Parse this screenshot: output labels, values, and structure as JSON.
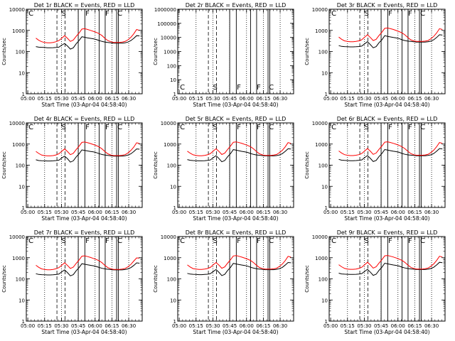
{
  "chart_data": [
    {
      "type": "line",
      "title": "Det 1r BLACK = Events, RED = LLD",
      "xlabel": "Start Time (03-Apr-04 04:58:40)",
      "ylabel": "Counts/sec",
      "xticks": [
        "05:00",
        "05:15",
        "05:30",
        "05:45",
        "06:00",
        "06:15",
        "06:30"
      ],
      "ylim": [
        1,
        10000
      ],
      "yticks": [
        "1",
        "10",
        "100",
        "1000",
        "10000"
      ],
      "yscale": "log",
      "flags": [
        "C",
        "S",
        "F",
        "F",
        "C"
      ],
      "series": [
        {
          "color": "#000000",
          "values": [
            170,
            160,
            158,
            155,
            150,
            150,
            152,
            155,
            160,
            200,
            240,
            180,
            130,
            150,
            230,
            330,
            500,
            470,
            440,
            420,
            400,
            370,
            330,
            300,
            280,
            270,
            260,
            250,
            250,
            250,
            250,
            260,
            280,
            330,
            420,
            560,
            550
          ]
        },
        {
          "color": "#ff0000",
          "values": [
            430,
            340,
            290,
            270,
            260,
            260,
            270,
            290,
            330,
            430,
            560,
            420,
            300,
            350,
            520,
            750,
            1150,
            1200,
            1100,
            1000,
            900,
            800,
            700,
            560,
            420,
            330,
            290,
            270,
            270,
            270,
            280,
            300,
            360,
            470,
            680,
            1100,
            1000
          ]
        }
      ]
    },
    {
      "type": "line",
      "title": "Det 2r BLACK = Events, RED = LLD",
      "xlabel": "Start Time (03-Apr-04 04:58:40)",
      "ylabel": "Counts/sec",
      "xticks": [
        "05:00",
        "05:15",
        "05:30",
        "05:45",
        "06:00",
        "06:15",
        "06:30"
      ],
      "ylim": [
        1,
        1000000
      ],
      "yticks": [
        "1",
        "10",
        "100",
        "1000",
        "10000",
        "100000",
        "1000000"
      ],
      "yscale": "log",
      "flags": [
        "C",
        "S",
        "F",
        "F",
        "C"
      ],
      "series": []
    },
    {
      "type": "line",
      "title": "Det 3r BLACK = Events, RED = LLD",
      "xlabel": "Start Time (03-Apr-04 04:58:40)",
      "ylabel": "Counts/sec",
      "xticks": [
        "05:00",
        "05:15",
        "05:30",
        "05:45",
        "06:00",
        "06:15",
        "06:30"
      ],
      "ylim": [
        1,
        10000
      ],
      "yticks": [
        "1",
        "10",
        "100",
        "1000",
        "10000"
      ],
      "yscale": "log",
      "flags": [
        "C",
        "S",
        "F",
        "F",
        "C"
      ],
      "series": [
        {
          "color": "#000000",
          "values": [
            190,
            175,
            170,
            168,
            165,
            165,
            168,
            172,
            180,
            230,
            290,
            210,
            150,
            170,
            260,
            360,
            560,
            520,
            490,
            460,
            440,
            410,
            360,
            330,
            310,
            300,
            290,
            280,
            280,
            280,
            280,
            290,
            310,
            360,
            460,
            620,
            600
          ]
        },
        {
          "color": "#ff0000",
          "values": [
            480,
            380,
            320,
            300,
            290,
            290,
            300,
            320,
            360,
            480,
            620,
            460,
            330,
            380,
            570,
            820,
            1250,
            1300,
            1200,
            1100,
            980,
            870,
            760,
            610,
            460,
            360,
            320,
            300,
            300,
            300,
            310,
            330,
            400,
            520,
            750,
            1200,
            1100
          ]
        }
      ]
    },
    {
      "type": "line",
      "title": "Det 4r BLACK = Events, RED = LLD",
      "xlabel": "Start Time (03-Apr-04 04:58:40)",
      "ylabel": "Counts/sec",
      "xticks": [
        "05:00",
        "05:15",
        "05:30",
        "05:45",
        "06:00",
        "06:15",
        "06:30"
      ],
      "ylim": [
        1,
        10000
      ],
      "yticks": [
        "1",
        "10",
        "100",
        "1000",
        "10000"
      ],
      "yscale": "log",
      "flags": [
        "C",
        "S",
        "F",
        "F",
        "C"
      ],
      "series": [
        {
          "color": "#000000",
          "values": [
            180,
            165,
            162,
            160,
            158,
            158,
            160,
            165,
            172,
            220,
            270,
            200,
            140,
            160,
            245,
            345,
            530,
            500,
            470,
            445,
            425,
            395,
            350,
            320,
            300,
            290,
            280,
            270,
            270,
            270,
            270,
            280,
            300,
            345,
            440,
            590,
            570
          ]
        },
        {
          "color": "#ff0000",
          "values": [
            450,
            360,
            300,
            285,
            275,
            275,
            285,
            305,
            345,
            455,
            590,
            440,
            315,
            365,
            545,
            790,
            1200,
            1250,
            1150,
            1050,
            940,
            840,
            730,
            585,
            440,
            345,
            305,
            285,
            285,
            285,
            295,
            315,
            380,
            495,
            715,
            1150,
            1050
          ]
        }
      ]
    },
    {
      "type": "line",
      "title": "Det 5r BLACK = Events, RED = LLD",
      "xlabel": "Start Time (03-Apr-04 04:58:40)",
      "ylabel": "Counts/sec",
      "xticks": [
        "05:00",
        "05:15",
        "05:30",
        "05:45",
        "06:00",
        "06:15",
        "06:30"
      ],
      "ylim": [
        1,
        10000
      ],
      "yticks": [
        "1",
        "10",
        "100",
        "1000",
        "10000"
      ],
      "yscale": "log",
      "flags": [
        "C",
        "S",
        "F",
        "F",
        "C"
      ],
      "series": [
        {
          "color": "#000000",
          "values": [
            185,
            170,
            166,
            163,
            160,
            160,
            163,
            168,
            176,
            225,
            280,
            205,
            145,
            165,
            250,
            350,
            545,
            510,
            480,
            450,
            430,
            400,
            355,
            325,
            305,
            295,
            285,
            275,
            275,
            275,
            275,
            285,
            305,
            350,
            450,
            600,
            580
          ]
        },
        {
          "color": "#ff0000",
          "values": [
            460,
            370,
            310,
            290,
            280,
            280,
            290,
            310,
            350,
            465,
            600,
            450,
            320,
            370,
            555,
            800,
            1220,
            1270,
            1170,
            1070,
            960,
            850,
            740,
            595,
            450,
            350,
            310,
            290,
            290,
            290,
            300,
            320,
            390,
            505,
            730,
            1170,
            1070
          ]
        }
      ]
    },
    {
      "type": "line",
      "title": "Det 6r BLACK = Events, RED = LLD",
      "xlabel": "Start Time (03-Apr-04 04:58:40)",
      "ylabel": "Counts/sec",
      "xticks": [
        "05:00",
        "05:15",
        "05:30",
        "05:45",
        "06:00",
        "06:15",
        "06:30"
      ],
      "ylim": [
        1,
        10000
      ],
      "yticks": [
        "1",
        "10",
        "100",
        "1000",
        "10000"
      ],
      "yscale": "log",
      "flags": [
        "C",
        "S",
        "F",
        "F",
        "C"
      ],
      "series": [
        {
          "color": "#000000",
          "values": [
            188,
            172,
            168,
            165,
            162,
            162,
            165,
            170,
            178,
            228,
            285,
            208,
            148,
            168,
            255,
            355,
            550,
            515,
            485,
            455,
            435,
            405,
            358,
            328,
            308,
            298,
            288,
            278,
            278,
            278,
            278,
            288,
            308,
            355,
            455,
            610,
            590
          ]
        },
        {
          "color": "#ff0000",
          "values": [
            470,
            375,
            315,
            295,
            285,
            285,
            295,
            315,
            355,
            470,
            610,
            455,
            325,
            375,
            560,
            810,
            1230,
            1280,
            1180,
            1080,
            970,
            860,
            750,
            600,
            455,
            355,
            315,
            295,
            295,
            295,
            305,
            325,
            395,
            510,
            740,
            1180,
            1080
          ]
        }
      ]
    },
    {
      "type": "line",
      "title": "Det 7r BLACK = Events, RED = LLD",
      "xlabel": "Start Time (03-Apr-04 04:58:40)",
      "ylabel": "Counts/sec",
      "xticks": [
        "05:00",
        "05:15",
        "05:30",
        "05:45",
        "06:00",
        "06:15",
        "06:30"
      ],
      "ylim": [
        1,
        10000
      ],
      "yticks": [
        "1",
        "10",
        "100",
        "1000",
        "10000"
      ],
      "yscale": "log",
      "flags": [
        "C",
        "S",
        "F",
        "F",
        "C"
      ],
      "series": [
        {
          "color": "#000000",
          "values": [
            175,
            162,
            158,
            156,
            153,
            153,
            156,
            160,
            168,
            215,
            265,
            195,
            138,
            158,
            240,
            340,
            520,
            490,
            460,
            435,
            415,
            385,
            345,
            315,
            295,
            285,
            275,
            265,
            265,
            265,
            265,
            275,
            295,
            340,
            430,
            570,
            550
          ]
        },
        {
          "color": "#ff0000",
          "values": [
            440,
            350,
            295,
            280,
            270,
            270,
            280,
            300,
            340,
            445,
            575,
            430,
            310,
            360,
            535,
            770,
            1180,
            1230,
            1130,
            1030,
            920,
            820,
            715,
            575,
            430,
            340,
            300,
            280,
            280,
            280,
            290,
            310,
            370,
            480,
            690,
            980,
            950
          ]
        }
      ]
    },
    {
      "type": "line",
      "title": "Det 8r BLACK = Events, RED = LLD",
      "xlabel": "Start Time (03-Apr-04 04:58:40)",
      "ylabel": "Counts/sec",
      "xticks": [
        "05:00",
        "05:15",
        "05:30",
        "05:45",
        "06:00",
        "06:15",
        "06:30"
      ],
      "ylim": [
        1,
        10000
      ],
      "yticks": [
        "1",
        "10",
        "100",
        "1000",
        "10000"
      ],
      "yscale": "log",
      "flags": [
        "C",
        "S",
        "F",
        "F",
        "C"
      ],
      "series": [
        {
          "color": "#000000",
          "values": [
            182,
            168,
            164,
            161,
            158,
            158,
            161,
            166,
            174,
            222,
            275,
            202,
            143,
            163,
            248,
            348,
            540,
            505,
            475,
            448,
            428,
            398,
            352,
            322,
            302,
            292,
            282,
            272,
            272,
            272,
            272,
            282,
            302,
            348,
            445,
            595,
            575
          ]
        },
        {
          "color": "#ff0000",
          "values": [
            455,
            365,
            305,
            288,
            278,
            278,
            288,
            308,
            348,
            460,
            595,
            445,
            318,
            368,
            550,
            795,
            1210,
            1260,
            1160,
            1060,
            950,
            845,
            735,
            590,
            445,
            348,
            308,
            288,
            288,
            288,
            298,
            318,
            385,
            500,
            720,
            1160,
            1060
          ]
        }
      ]
    },
    {
      "type": "line",
      "title": "Det 9r BLACK = Events, RED = LLD",
      "xlabel": "Start Time (03-Apr-04 04:58:40)",
      "ylabel": "Counts/sec",
      "xticks": [
        "05:00",
        "05:15",
        "05:30",
        "05:45",
        "06:00",
        "06:15",
        "06:30"
      ],
      "ylim": [
        1,
        10000
      ],
      "yticks": [
        "1",
        "10",
        "100",
        "1000",
        "10000"
      ],
      "yscale": "log",
      "flags": [
        "C",
        "S",
        "F",
        "F",
        "C"
      ],
      "series": [
        {
          "color": "#000000",
          "values": [
            186,
            171,
            167,
            164,
            161,
            161,
            164,
            169,
            177,
            226,
            282,
            206,
            146,
            166,
            252,
            352,
            548,
            512,
            482,
            452,
            432,
            402,
            356,
            326,
            306,
            296,
            286,
            276,
            276,
            276,
            276,
            286,
            306,
            352,
            452,
            605,
            585
          ]
        },
        {
          "color": "#ff0000",
          "values": [
            465,
            372,
            312,
            292,
            282,
            282,
            292,
            312,
            352,
            468,
            605,
            452,
            322,
            372,
            558,
            805,
            1225,
            1275,
            1175,
            1075,
            965,
            855,
            745,
            598,
            452,
            352,
            312,
            292,
            292,
            292,
            302,
            322,
            392,
            508,
            735,
            1175,
            1075
          ]
        }
      ]
    }
  ]
}
